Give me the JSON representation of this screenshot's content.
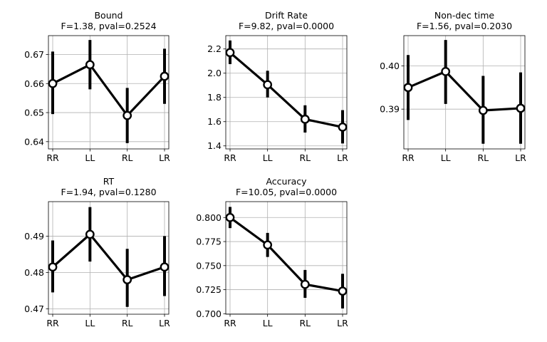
{
  "figure": {
    "colors": {
      "line": "#000000",
      "marker_face": "#ffffff",
      "grid": "#b0b0b0",
      "axes": "#000000"
    }
  },
  "chart_data": [
    {
      "type": "line",
      "title": "Bound",
      "subtitle": "F=1.38, pval=0.2524",
      "categories": [
        "RR",
        "LL",
        "RL",
        "LR"
      ],
      "values": [
        0.66,
        0.6665,
        0.649,
        0.6625
      ],
      "err_low": [
        0.6495,
        0.658,
        0.6395,
        0.653
      ],
      "err_high": [
        0.671,
        0.675,
        0.6585,
        0.672
      ],
      "ylim": [
        0.6375,
        0.6765
      ],
      "yticks": [
        0.64,
        0.65,
        0.66,
        0.67
      ],
      "ytick_labels": [
        "0.64",
        "0.65",
        "0.66",
        "0.67"
      ],
      "grid": true
    },
    {
      "type": "line",
      "title": "Drift Rate",
      "subtitle": "F=9.82, pval=0.0000",
      "categories": [
        "RR",
        "LL",
        "RL",
        "LR"
      ],
      "values": [
        2.17,
        1.905,
        1.62,
        1.555
      ],
      "err_low": [
        2.075,
        1.8,
        1.51,
        1.42
      ],
      "err_high": [
        2.27,
        2.02,
        1.735,
        1.695
      ],
      "ylim": [
        1.375,
        2.31
      ],
      "yticks": [
        1.4,
        1.6,
        1.8,
        2.0,
        2.2
      ],
      "ytick_labels": [
        "1.4",
        "1.6",
        "1.8",
        "2.0",
        "2.2"
      ],
      "grid": true
    },
    {
      "type": "line",
      "title": "Non-dec time",
      "subtitle": "F=1.56, pval=0.2030",
      "categories": [
        "RR",
        "LL",
        "RL",
        "LR"
      ],
      "values": [
        0.395,
        0.3987,
        0.3897,
        0.3902
      ],
      "err_low": [
        0.3875,
        0.3912,
        0.382,
        0.382
      ],
      "err_high": [
        0.4025,
        0.406,
        0.3977,
        0.3985
      ],
      "ylim": [
        0.3808,
        0.407
      ],
      "yticks": [
        0.39,
        0.4
      ],
      "ytick_labels": [
        "0.39",
        "0.40"
      ],
      "grid": true
    },
    {
      "type": "line",
      "title": "RT",
      "subtitle": "F=1.94, pval=0.1280",
      "categories": [
        "RR",
        "LL",
        "RL",
        "LR"
      ],
      "values": [
        0.4815,
        0.4905,
        0.478,
        0.4815
      ],
      "err_low": [
        0.4745,
        0.483,
        0.4705,
        0.4735
      ],
      "err_high": [
        0.4888,
        0.498,
        0.4865,
        0.49
      ],
      "ylim": [
        0.4685,
        0.4995
      ],
      "yticks": [
        0.47,
        0.48,
        0.49
      ],
      "ytick_labels": [
        "0.47",
        "0.48",
        "0.49"
      ],
      "grid": true
    },
    {
      "type": "line",
      "title": "Accuracy",
      "subtitle": "F=10.05, pval=0.0000",
      "categories": [
        "RR",
        "LL",
        "RL",
        "LR"
      ],
      "values": [
        0.8,
        0.7715,
        0.7305,
        0.7235
      ],
      "err_low": [
        0.789,
        0.759,
        0.7165,
        0.7055
      ],
      "err_high": [
        0.811,
        0.784,
        0.7455,
        0.7415
      ],
      "ylim": [
        0.6995,
        0.8165
      ],
      "yticks": [
        0.7,
        0.725,
        0.75,
        0.775,
        0.8
      ],
      "ytick_labels": [
        "0.700",
        "0.725",
        "0.750",
        "0.775",
        "0.800"
      ],
      "grid": true
    }
  ]
}
